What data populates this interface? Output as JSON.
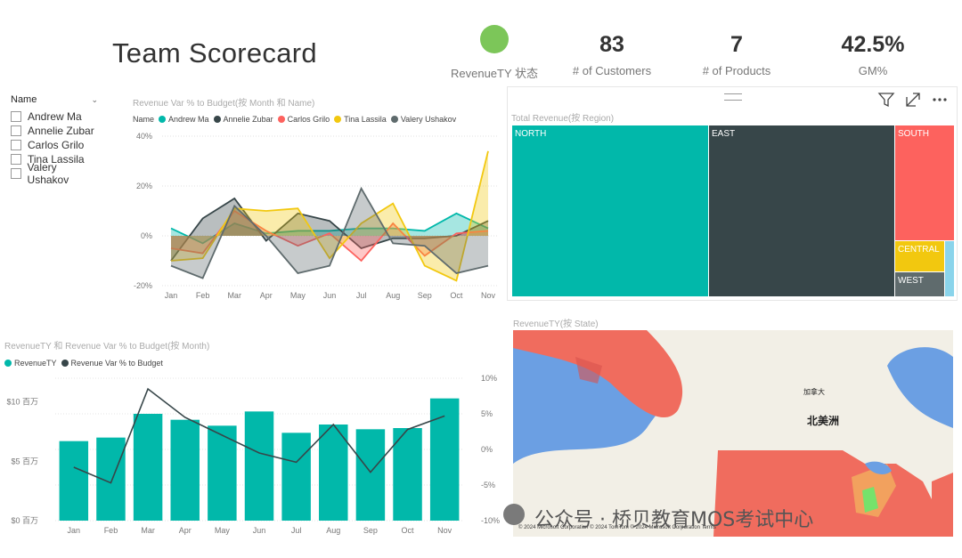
{
  "title": "Team Scorecard",
  "kpis": {
    "status_label": "RevenueTY 状态",
    "status_color": "#7CC659",
    "customers_value": "83",
    "customers_label": "# of Customers",
    "products_value": "7",
    "products_label": "# of Products",
    "gm_value": "42.5%",
    "gm_label": "GM%"
  },
  "slicer": {
    "title": "Name",
    "items": [
      "Andrew Ma",
      "Annelie Zubar",
      "Carlos Grilo",
      "Tina Lassila",
      "Valery Ushakov"
    ]
  },
  "treemap_toolbar": {
    "filter_icon": "filter-icon",
    "focus_icon": "focus-mode-icon",
    "more_icon": "more-options-icon",
    "drag_icon": "drag-handle-icon"
  },
  "map": {
    "title": "RevenueTY(按 State)",
    "label_canada": "加拿大",
    "label_na": "北美洲",
    "attribution": "© 2024 Microsoft Corporation   © 2024 TomTom   © 2024 Microsoft Corporation  Terms",
    "watermark": "公众号 · 桥贝教育MOS考试中心",
    "colors": {
      "ocean": "#6B9FE3",
      "land": "#F2EFE6",
      "us": "#F06C5E"
    }
  },
  "chart_data": [
    {
      "id": "revenue-var-by-name",
      "type": "area",
      "title": "Revenue Var % to Budget(按 Month 和 Name)",
      "legend_title": "Name",
      "categories": [
        "Jan",
        "Feb",
        "Mar",
        "Apr",
        "May",
        "Jun",
        "Jul",
        "Aug",
        "Sep",
        "Oct",
        "Nov"
      ],
      "y_ticks": [
        "40%",
        "20%",
        "0%",
        "-20%"
      ],
      "ylim": [
        -20,
        40
      ],
      "series": [
        {
          "name": "Andrew Ma",
          "color": "#01B8AA",
          "values": [
            3,
            -3,
            5,
            1,
            2,
            2,
            3,
            3,
            2,
            9,
            3
          ]
        },
        {
          "name": "Annelie Zubar",
          "color": "#374649",
          "values": [
            -10,
            7,
            15,
            -2,
            9,
            6,
            -5,
            -1,
            -1,
            0,
            6
          ]
        },
        {
          "name": "Carlos Grilo",
          "color": "#FD625E",
          "values": [
            -5,
            -7,
            10,
            2,
            -4,
            1,
            -10,
            5,
            -8,
            1,
            2
          ]
        },
        {
          "name": "Tina Lassila",
          "color": "#F2C80F",
          "values": [
            -10,
            -9,
            11,
            10,
            11,
            -9,
            5,
            13,
            -12,
            -18,
            34
          ]
        },
        {
          "name": "Valery Ushakov",
          "color": "#5F6B6D",
          "values": [
            -12,
            -17,
            12,
            0,
            -15,
            -12,
            19,
            -3,
            -4,
            -15,
            -12
          ]
        }
      ]
    },
    {
      "id": "total-revenue-by-region",
      "type": "treemap",
      "title": "Total Revenue(按 Region)",
      "categories": [
        "NORTH",
        "EAST",
        "SOUTH",
        "CENTRAL",
        "WEST"
      ],
      "colors": [
        "#01B8AA",
        "#374649",
        "#FD625E",
        "#F2C80F",
        "#5F6B6D"
      ]
    },
    {
      "id": "revenue-ty-and-var-by-month",
      "type": "bar",
      "title": "RevenueTY 和 Revenue Var % to Budget(按 Month)",
      "categories": [
        "Jan",
        "Feb",
        "Mar",
        "Apr",
        "May",
        "Jun",
        "Jul",
        "Aug",
        "Sep",
        "Oct",
        "Nov"
      ],
      "y_left_ticks": [
        "$10 百万",
        "$5 百万",
        "$0 百万"
      ],
      "y_right_ticks": [
        "10%",
        "5%",
        "0%",
        "-5%",
        "-10%"
      ],
      "ylim_left": [
        0,
        12
      ],
      "ylim_right": [
        -10,
        10
      ],
      "series": [
        {
          "name": "RevenueTY",
          "type": "bar",
          "color": "#01B8AA",
          "values": [
            6.7,
            7.0,
            9.0,
            8.5,
            8.0,
            9.2,
            7.4,
            8.1,
            7.7,
            7.8,
            10.3
          ]
        },
        {
          "name": "Revenue Var % to Budget",
          "type": "line",
          "color": "#374649",
          "values": [
            -2.5,
            -4.7,
            8.5,
            4.5,
            2.0,
            -0.5,
            -1.8,
            3.5,
            -3.2,
            2.8,
            4.7
          ]
        }
      ]
    }
  ]
}
